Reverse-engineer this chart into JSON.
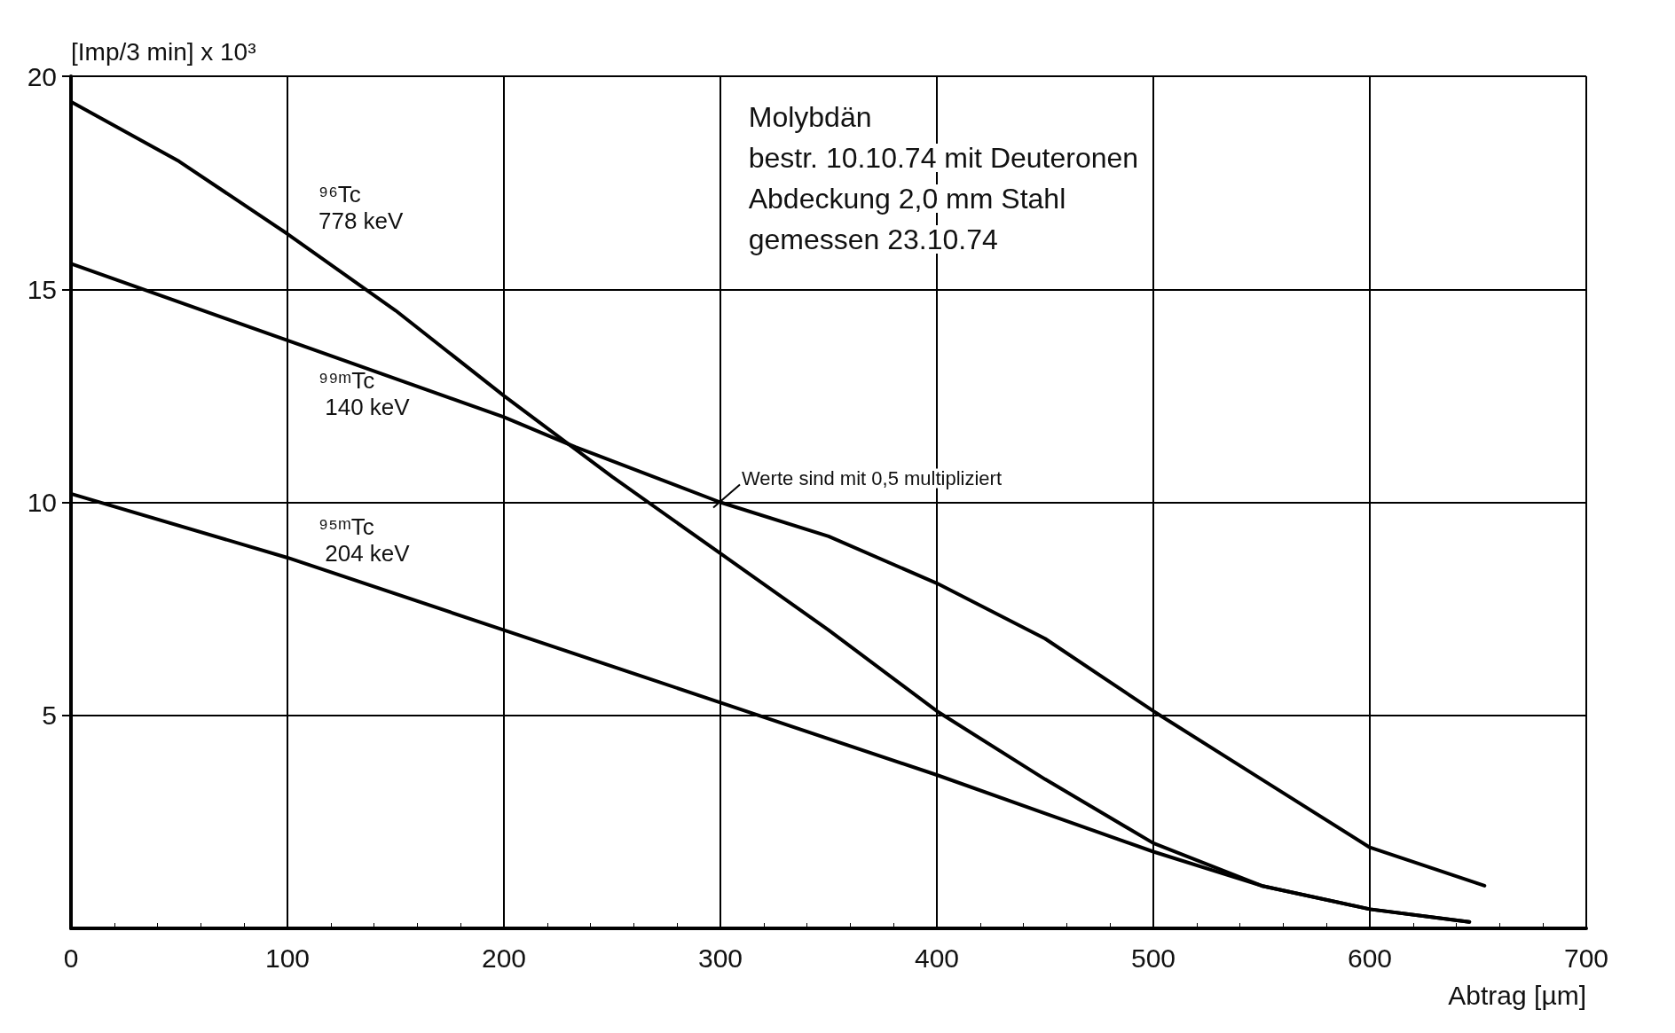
{
  "chart_data": {
    "type": "line",
    "xlabel": "Abtrag [µm]",
    "ylabel": "[Imp/3 min] x 10³",
    "xlim": [
      0,
      700
    ],
    "xticks": [
      0,
      100,
      200,
      300,
      400,
      500,
      600,
      700
    ],
    "ylim": [
      0,
      20
    ],
    "yticks": [
      5,
      10,
      15,
      20
    ],
    "grid": true,
    "legend": false,
    "marker": "none",
    "line_style": "solid",
    "series": [
      {
        "name": "⁹⁶Tc 778 keV",
        "color": "#000000",
        "x": [
          0,
          50,
          100,
          150,
          200,
          250,
          300,
          350,
          400,
          450,
          500,
          550,
          600,
          646
        ],
        "values": [
          19.4,
          18.0,
          16.3,
          14.5,
          12.5,
          10.6,
          8.8,
          7.0,
          5.1,
          3.5,
          2.0,
          1.0,
          0.45,
          0.15
        ]
      },
      {
        "name": "⁹⁹ᵐTc 140 keV",
        "color": "#000000",
        "x": [
          0,
          100,
          200,
          233,
          300,
          350,
          400,
          450,
          500,
          550,
          600,
          653
        ],
        "values": [
          15.6,
          13.8,
          12.0,
          11.3,
          10.0,
          9.2,
          8.1,
          6.8,
          5.1,
          3.5,
          1.9,
          1.0
        ]
      },
      {
        "name": "⁹⁵ᵐTc 204 keV",
        "color": "#000000",
        "x": [
          0,
          100,
          200,
          300,
          400,
          450,
          500,
          550,
          600,
          646
        ],
        "values": [
          10.2,
          8.7,
          7.0,
          5.3,
          3.6,
          2.7,
          1.8,
          1.0,
          0.45,
          0.15
        ]
      }
    ],
    "annotations": [
      "Molybdän",
      "bestr. 10.10.74 mit Deuteronen",
      "Abdeckung 2,0 mm Stahl",
      "gemessen 23.10.74",
      {
        "text": "Werte sind mit 0,5 multipliziert",
        "x": 300,
        "y": 10.0
      }
    ]
  }
}
